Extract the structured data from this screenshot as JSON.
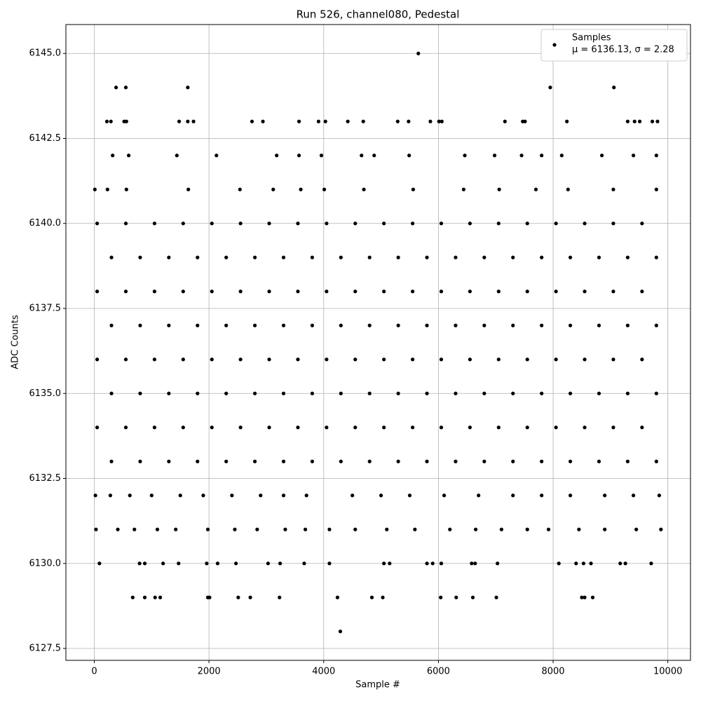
{
  "chart_data": {
    "type": "scatter",
    "title": "Run 526, channel080, Pedestal",
    "x_label": "Sample #",
    "y_label": "ADC Counts",
    "xlim": [
      -495,
      10395
    ],
    "ylim": [
      6127.15,
      6145.85
    ],
    "xticks": [
      0,
      2000,
      4000,
      6000,
      8000,
      10000
    ],
    "yticks": [
      6127.5,
      {
        "value": 6130,
        "label": "6130.0"
      },
      6132.5,
      {
        "value": 6135,
        "label": "6135.0"
      },
      6137.5,
      {
        "value": 6140,
        "label": "6140.0"
      },
      6142.5,
      {
        "value": 6145,
        "label": "6145.0"
      }
    ],
    "grid": true,
    "legend": "upper right",
    "legend_note": "μ = 6136.13, σ = 2.28",
    "series": [
      {
        "name": "Samples",
        "color": "#000000",
        "x": [
          50,
          550,
          1050,
          1550,
          2050,
          2550,
          3050,
          3550,
          4050,
          4550,
          5050,
          5550,
          6050,
          6550,
          7050,
          7550,
          8050,
          8550,
          9050,
          9550,
          300,
          800,
          1300,
          1800,
          2300,
          2800,
          3300,
          3800,
          4300,
          4800,
          5300,
          5800,
          6300,
          6800,
          7300,
          7800,
          8300,
          8800,
          9300,
          9800,
          50,
          550,
          1050,
          1550,
          2050,
          2550,
          3050,
          3550,
          4050,
          4550,
          5050,
          5550,
          6050,
          6550,
          7050,
          7550,
          8050,
          8550,
          9050,
          9550,
          300,
          800,
          1300,
          1800,
          2300,
          2800,
          3300,
          3800,
          4300,
          4800,
          5300,
          5800,
          6300,
          6800,
          7300,
          7800,
          8300,
          8800,
          9300,
          9800,
          50,
          550,
          1050,
          1550,
          2050,
          2550,
          3050,
          3550,
          4050,
          4550,
          5050,
          5550,
          6050,
          6550,
          7050,
          7550,
          8050,
          8550,
          9050,
          9550,
          300,
          800,
          1300,
          1800,
          2300,
          2800,
          3300,
          3800,
          4300,
          4800,
          5300,
          5800,
          6300,
          6800,
          7300,
          7800,
          8300,
          8800,
          9300,
          9800,
          50,
          550,
          1050,
          1550,
          2050,
          2550,
          3050,
          3550,
          4050,
          4550,
          5050,
          5550,
          6050,
          6550,
          7050,
          7550,
          8050,
          8550,
          9050,
          9550,
          300,
          800,
          1300,
          1800,
          2300,
          2800,
          3300,
          3800,
          4300,
          4800,
          5300,
          5800,
          6300,
          6800,
          7300,
          7800,
          8300,
          8800,
          9300,
          9800,
          10,
          230,
          560,
          1640,
          2540,
          3120,
          3600,
          4010,
          4700,
          5560,
          6440,
          7060,
          7700,
          8260,
          9050,
          9800,
          320,
          600,
          1440,
          2130,
          3180,
          3570,
          3960,
          4660,
          4880,
          5490,
          6460,
          6980,
          7450,
          7800,
          8150,
          8850,
          9400,
          9800,
          20,
          280,
          620,
          1000,
          1500,
          1900,
          2400,
          2900,
          3300,
          3700,
          4500,
          5000,
          5500,
          6100,
          6700,
          7300,
          7800,
          8300,
          8900,
          9400,
          9850,
          30,
          410,
          700,
          1100,
          1420,
          1980,
          2450,
          2840,
          3330,
          3680,
          4100,
          4550,
          5100,
          5590,
          6200,
          6650,
          7100,
          7550,
          7920,
          8450,
          8900,
          9450,
          9880,
          90,
          790,
          880,
          1200,
          1470,
          1960,
          2150,
          2470,
          3030,
          3240,
          3660,
          4100,
          5050,
          5150,
          5800,
          5900,
          6050,
          6580,
          6640,
          7030,
          8100,
          8400,
          8530,
          8660,
          9170,
          9260,
          9710,
          670,
          880,
          1060,
          1150,
          1980,
          2010,
          2510,
          2720,
          3230,
          4240,
          4840,
          5030,
          6040,
          6310,
          6600,
          7010,
          8500,
          8550,
          8690,
          4290,
          220,
          290,
          520,
          560,
          1480,
          1630,
          1730,
          2750,
          2940,
          3570,
          3910,
          4030,
          4420,
          4690,
          5290,
          5480,
          5860,
          6010,
          6060,
          7160,
          7470,
          7510,
          8240,
          9300,
          9420,
          9510,
          9730,
          9820,
          380,
          550,
          1630,
          7950,
          9060,
          5650
        ],
        "values": [
          6140,
          6140,
          6140,
          6140,
          6140,
          6140,
          6140,
          6140,
          6140,
          6140,
          6140,
          6140,
          6140,
          6140,
          6140,
          6140,
          6140,
          6140,
          6140,
          6140,
          6139,
          6139,
          6139,
          6139,
          6139,
          6139,
          6139,
          6139,
          6139,
          6139,
          6139,
          6139,
          6139,
          6139,
          6139,
          6139,
          6139,
          6139,
          6139,
          6139,
          6138,
          6138,
          6138,
          6138,
          6138,
          6138,
          6138,
          6138,
          6138,
          6138,
          6138,
          6138,
          6138,
          6138,
          6138,
          6138,
          6138,
          6138,
          6138,
          6138,
          6137,
          6137,
          6137,
          6137,
          6137,
          6137,
          6137,
          6137,
          6137,
          6137,
          6137,
          6137,
          6137,
          6137,
          6137,
          6137,
          6137,
          6137,
          6137,
          6137,
          6136,
          6136,
          6136,
          6136,
          6136,
          6136,
          6136,
          6136,
          6136,
          6136,
          6136,
          6136,
          6136,
          6136,
          6136,
          6136,
          6136,
          6136,
          6136,
          6136,
          6135,
          6135,
          6135,
          6135,
          6135,
          6135,
          6135,
          6135,
          6135,
          6135,
          6135,
          6135,
          6135,
          6135,
          6135,
          6135,
          6135,
          6135,
          6135,
          6135,
          6134,
          6134,
          6134,
          6134,
          6134,
          6134,
          6134,
          6134,
          6134,
          6134,
          6134,
          6134,
          6134,
          6134,
          6134,
          6134,
          6134,
          6134,
          6134,
          6134,
          6133,
          6133,
          6133,
          6133,
          6133,
          6133,
          6133,
          6133,
          6133,
          6133,
          6133,
          6133,
          6133,
          6133,
          6133,
          6133,
          6133,
          6133,
          6133,
          6133,
          6141,
          6141,
          6141,
          6141,
          6141,
          6141,
          6141,
          6141,
          6141,
          6141,
          6141,
          6141,
          6141,
          6141,
          6141,
          6141,
          6142,
          6142,
          6142,
          6142,
          6142,
          6142,
          6142,
          6142,
          6142,
          6142,
          6142,
          6142,
          6142,
          6142,
          6142,
          6142,
          6142,
          6142,
          6132,
          6132,
          6132,
          6132,
          6132,
          6132,
          6132,
          6132,
          6132,
          6132,
          6132,
          6132,
          6132,
          6132,
          6132,
          6132,
          6132,
          6132,
          6132,
          6132,
          6132,
          6131,
          6131,
          6131,
          6131,
          6131,
          6131,
          6131,
          6131,
          6131,
          6131,
          6131,
          6131,
          6131,
          6131,
          6131,
          6131,
          6131,
          6131,
          6131,
          6131,
          6131,
          6131,
          6131,
          6130,
          6130,
          6130,
          6130,
          6130,
          6130,
          6130,
          6130,
          6130,
          6130,
          6130,
          6130,
          6130,
          6130,
          6130,
          6130,
          6130,
          6130,
          6130,
          6130,
          6130,
          6130,
          6130,
          6130,
          6130,
          6130,
          6130,
          6129,
          6129,
          6129,
          6129,
          6129,
          6129,
          6129,
          6129,
          6129,
          6129,
          6129,
          6129,
          6129,
          6129,
          6129,
          6129,
          6129,
          6129,
          6129,
          6128,
          6143,
          6143,
          6143,
          6143,
          6143,
          6143,
          6143,
          6143,
          6143,
          6143,
          6143,
          6143,
          6143,
          6143,
          6143,
          6143,
          6143,
          6143,
          6143,
          6143,
          6143,
          6143,
          6143,
          6143,
          6143,
          6143,
          6143,
          6143,
          6144,
          6144,
          6144,
          6144,
          6144,
          6145
        ]
      }
    ]
  }
}
